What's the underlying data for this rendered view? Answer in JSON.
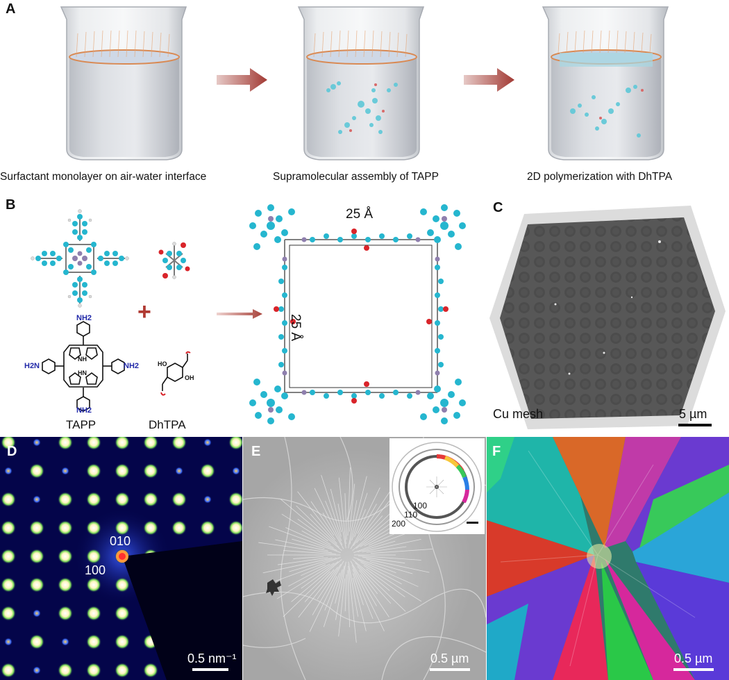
{
  "panels": {
    "a": {
      "letter": "A",
      "captions": [
        "Surfactant monolayer on air-water interface",
        "Supramolecular assembly of TAPP",
        "2D polymerization with DhTPA"
      ]
    },
    "b": {
      "letter": "B",
      "tapp_label": "TAPP",
      "dhtpa_label": "DhTPA",
      "nh2": "NH2",
      "h2n": "H2N",
      "nh": "NH",
      "hn": "HN",
      "ho": "HO",
      "oh": "OH",
      "dim_top": "25 Å",
      "dim_side": "25 Å",
      "plus": "+"
    },
    "c": {
      "letter": "C",
      "label": "Cu mesh",
      "scale": "5 µm"
    },
    "d": {
      "letter": "D",
      "label_010": "010",
      "label_100": "100",
      "scale": "0.5 nm⁻¹"
    },
    "e": {
      "letter": "E",
      "ring_100": "100",
      "ring_110": "110",
      "ring_200": "200",
      "scale": "0.5 µm"
    },
    "f": {
      "letter": "F",
      "scale": "0.5 µm"
    }
  }
}
